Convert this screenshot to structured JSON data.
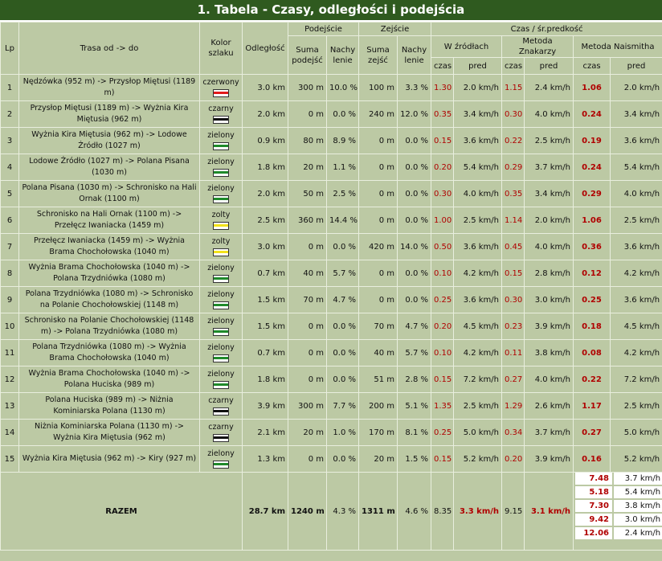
{
  "title": "1. Tabela - Czasy, odległości i podejścia",
  "headers": {
    "lp": "Lp",
    "trasa": "Trasa od -> do",
    "kolor": "Kolor szlaku",
    "odleglosc": "Odległość",
    "podejscie": "Podejście",
    "zejscie": "Zejście",
    "czas_pred": "Czas / śr.predkość",
    "suma_podejsc": "Suma podejść",
    "nachylenie": "Nachy lenie",
    "suma_zejsc": "Suma zejść",
    "w_zrodlach": "W źródłach",
    "znakarzy": "Metoda Znakarzy",
    "naismitha": "Metoda Naismitha",
    "czas": "czas",
    "pred": "pred"
  },
  "colors": {
    "czerwony": "#e21b1b",
    "czarny": "#111111",
    "zielony": "#1f8a2a",
    "zolty": "#f2e21a"
  },
  "rows": [
    {
      "lp": "1",
      "trasa": "Nędzówka (952 m) -> Przysłop Miętusi (1189 m)",
      "kolor": "czerwony",
      "odl": "3.0 km",
      "pod": "300 m",
      "pn": "10.0 %",
      "zej": "100 m",
      "zn": "3.3 %",
      "zc": "1.30",
      "zp": "2.0 km/h",
      "kc": "1.15",
      "kp": "2.4 km/h",
      "nc": "1.06",
      "np": "2.0 km/h"
    },
    {
      "lp": "2",
      "trasa": "Przysłop Miętusi (1189 m) -> Wyżnia Kira Miętusia (962 m)",
      "kolor": "czarny",
      "odl": "2.0 km",
      "pod": "0 m",
      "pn": "0.0 %",
      "zej": "240 m",
      "zn": "12.0 %",
      "zc": "0.35",
      "zp": "3.4 km/h",
      "kc": "0.30",
      "kp": "4.0 km/h",
      "nc": "0.24",
      "np": "3.4 km/h"
    },
    {
      "lp": "3",
      "trasa": "Wyżnia Kira Miętusia (962 m) -> Lodowe Źródło (1027 m)",
      "kolor": "zielony",
      "odl": "0.9 km",
      "pod": "80 m",
      "pn": "8.9 %",
      "zej": "0 m",
      "zn": "0.0 %",
      "zc": "0.15",
      "zp": "3.6 km/h",
      "kc": "0.22",
      "kp": "2.5 km/h",
      "nc": "0.19",
      "np": "3.6 km/h"
    },
    {
      "lp": "4",
      "trasa": "Lodowe Źródło (1027 m) -> Polana Pisana (1030 m)",
      "kolor": "zielony",
      "odl": "1.8 km",
      "pod": "20 m",
      "pn": "1.1 %",
      "zej": "0 m",
      "zn": "0.0 %",
      "zc": "0.20",
      "zp": "5.4 km/h",
      "kc": "0.29",
      "kp": "3.7 km/h",
      "nc": "0.24",
      "np": "5.4 km/h"
    },
    {
      "lp": "5",
      "trasa": "Polana Pisana (1030 m) -> Schronisko na Hali Ornak (1100 m)",
      "kolor": "zielony",
      "odl": "2.0 km",
      "pod": "50 m",
      "pn": "2.5 %",
      "zej": "0 m",
      "zn": "0.0 %",
      "zc": "0.30",
      "zp": "4.0 km/h",
      "kc": "0.35",
      "kp": "3.4 km/h",
      "nc": "0.29",
      "np": "4.0 km/h"
    },
    {
      "lp": "6",
      "trasa": "Schronisko na Hali Ornak (1100 m) -> Przełęcz Iwaniacka (1459 m)",
      "kolor": "zolty",
      "odl": "2.5 km",
      "pod": "360 m",
      "pn": "14.4 %",
      "zej": "0 m",
      "zn": "0.0 %",
      "zc": "1.00",
      "zp": "2.5 km/h",
      "kc": "1.14",
      "kp": "2.0 km/h",
      "nc": "1.06",
      "np": "2.5 km/h"
    },
    {
      "lp": "7",
      "trasa": "Przełęcz Iwaniacka (1459 m) -> Wyżnia Brama Chochołowska (1040 m)",
      "kolor": "zolty",
      "odl": "3.0 km",
      "pod": "0 m",
      "pn": "0.0 %",
      "zej": "420 m",
      "zn": "14.0 %",
      "zc": "0.50",
      "zp": "3.6 km/h",
      "kc": "0.45",
      "kp": "4.0 km/h",
      "nc": "0.36",
      "np": "3.6 km/h"
    },
    {
      "lp": "8",
      "trasa": "Wyżnia Brama Chochołowska (1040 m) -> Polana Trzydniówka (1080 m)",
      "kolor": "zielony",
      "odl": "0.7 km",
      "pod": "40 m",
      "pn": "5.7 %",
      "zej": "0 m",
      "zn": "0.0 %",
      "zc": "0.10",
      "zp": "4.2 km/h",
      "kc": "0.15",
      "kp": "2.8 km/h",
      "nc": "0.12",
      "np": "4.2 km/h"
    },
    {
      "lp": "9",
      "trasa": "Polana Trzydniówka (1080 m) -> Schronisko na Polanie Chochołowskiej (1148 m)",
      "kolor": "zielony",
      "odl": "1.5 km",
      "pod": "70 m",
      "pn": "4.7 %",
      "zej": "0 m",
      "zn": "0.0 %",
      "zc": "0.25",
      "zp": "3.6 km/h",
      "kc": "0.30",
      "kp": "3.0 km/h",
      "nc": "0.25",
      "np": "3.6 km/h"
    },
    {
      "lp": "10",
      "trasa": "Schronisko na Polanie Chochołowskiej (1148 m) -> Polana Trzydniówka (1080 m)",
      "kolor": "zielony",
      "odl": "1.5 km",
      "pod": "0 m",
      "pn": "0.0 %",
      "zej": "70 m",
      "zn": "4.7 %",
      "zc": "0.20",
      "zp": "4.5 km/h",
      "kc": "0.23",
      "kp": "3.9 km/h",
      "nc": "0.18",
      "np": "4.5 km/h"
    },
    {
      "lp": "11",
      "trasa": "Polana Trzydniówka (1080 m) -> Wyżnia Brama Chochołowska (1040 m)",
      "kolor": "zielony",
      "odl": "0.7 km",
      "pod": "0 m",
      "pn": "0.0 %",
      "zej": "40 m",
      "zn": "5.7 %",
      "zc": "0.10",
      "zp": "4.2 km/h",
      "kc": "0.11",
      "kp": "3.8 km/h",
      "nc": "0.08",
      "np": "4.2 km/h"
    },
    {
      "lp": "12",
      "trasa": "Wyżnia Brama Chochołowska (1040 m) -> Polana Huciska (989 m)",
      "kolor": "zielony",
      "odl": "1.8 km",
      "pod": "0 m",
      "pn": "0.0 %",
      "zej": "51 m",
      "zn": "2.8 %",
      "zc": "0.15",
      "zp": "7.2 km/h",
      "kc": "0.27",
      "kp": "4.0 km/h",
      "nc": "0.22",
      "np": "7.2 km/h"
    },
    {
      "lp": "13",
      "trasa": "Polana Huciska (989 m) -> Niżnia Kominiarska Polana (1130 m)",
      "kolor": "czarny",
      "odl": "3.9 km",
      "pod": "300 m",
      "pn": "7.7 %",
      "zej": "200 m",
      "zn": "5.1 %",
      "zc": "1.35",
      "zp": "2.5 km/h",
      "kc": "1.29",
      "kp": "2.6 km/h",
      "nc": "1.17",
      "np": "2.5 km/h"
    },
    {
      "lp": "14",
      "trasa": "Niżnia Kominiarska Polana (1130 m) -> Wyżnia Kira Miętusia (962 m)",
      "kolor": "czarny",
      "odl": "2.1 km",
      "pod": "20 m",
      "pn": "1.0 %",
      "zej": "170 m",
      "zn": "8.1 %",
      "zc": "0.25",
      "zp": "5.0 km/h",
      "kc": "0.34",
      "kp": "3.7 km/h",
      "nc": "0.27",
      "np": "5.0 km/h"
    },
    {
      "lp": "15",
      "trasa": "Wyżnia Kira Miętusia (962 m) -> Kiry (927 m)",
      "kolor": "zielony",
      "odl": "1.3 km",
      "pod": "0 m",
      "pn": "0.0 %",
      "zej": "20 m",
      "zn": "1.5 %",
      "zc": "0.15",
      "zp": "5.2 km/h",
      "kc": "0.20",
      "kp": "3.9 km/h",
      "nc": "0.16",
      "np": "5.2 km/h"
    }
  ],
  "summary": {
    "label": "RAZEM",
    "odl": "28.7 km",
    "pod": "1240 m",
    "pn": "4.3 %",
    "zej": "1311 m",
    "zn": "4.6 %",
    "zc": "8.35",
    "zp": "3.3 km/h",
    "kc": "9.15",
    "kp": "3.1 km/h",
    "naismitha": [
      {
        "t": "7.48",
        "s": "3.7 km/h"
      },
      {
        "t": "5.18",
        "s": "5.4 km/h"
      },
      {
        "t": "7.30",
        "s": "3.8 km/h"
      },
      {
        "t": "9.42",
        "s": "3.0 km/h"
      },
      {
        "t": "12.06",
        "s": "2.4 km/h"
      }
    ]
  }
}
